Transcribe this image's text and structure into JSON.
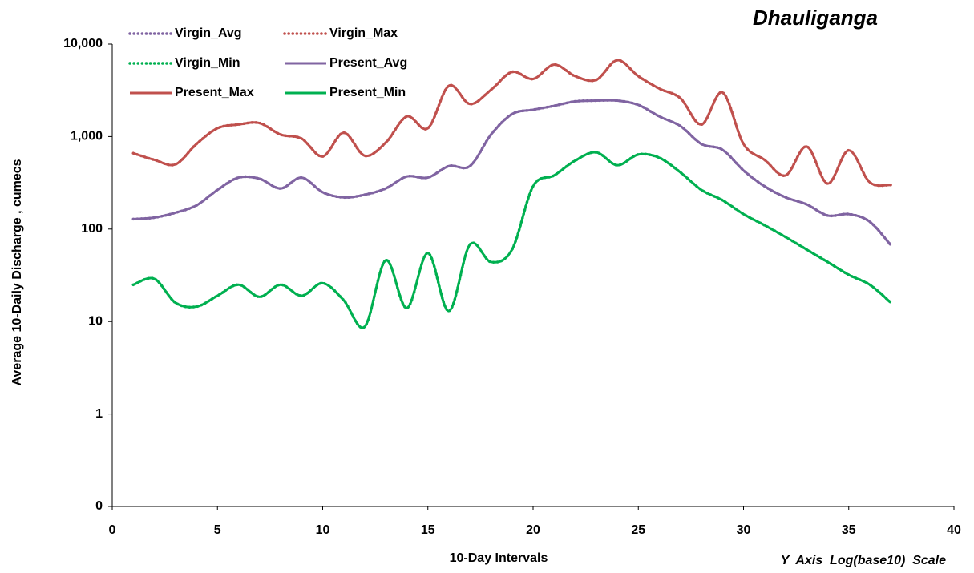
{
  "chart_data": {
    "type": "line",
    "title": "Dhauliganga",
    "x_label": "10-Day Intervals",
    "y_label": "Average 10-Daily Discharge , cumecs",
    "annotation": "Y  Axis  Log(base10)  Scale",
    "log_y": true,
    "grid": false,
    "legend": "top-left",
    "x": [
      1,
      2,
      3,
      4,
      5,
      6,
      7,
      8,
      9,
      10,
      11,
      12,
      13,
      14,
      15,
      16,
      17,
      18,
      19,
      20,
      21,
      22,
      23,
      24,
      25,
      26,
      27,
      28,
      29,
      30,
      31,
      32,
      33,
      34,
      35,
      36,
      37
    ],
    "xlim": [
      0,
      40
    ],
    "xticks": [
      0,
      5,
      10,
      15,
      20,
      25,
      30,
      35,
      40
    ],
    "ylim": [
      0.1,
      10000
    ],
    "yticks": [
      {
        "value": 0.1,
        "label": "0"
      },
      1,
      10,
      100,
      {
        "value": 1000,
        "label": "1,000"
      },
      {
        "value": 10000,
        "label": "10,000"
      }
    ],
    "series": [
      {
        "name": "Virgin_Avg",
        "color": "#8064a2",
        "style": "dotted",
        "values": [
          128,
          133,
          150,
          180,
          265,
          360,
          350,
          275,
          360,
          250,
          220,
          235,
          275,
          370,
          360,
          480,
          480,
          1050,
          1750,
          1950,
          2150,
          2400,
          2450,
          2450,
          2200,
          1650,
          1300,
          830,
          720,
          430,
          290,
          220,
          185,
          140,
          145,
          120,
          67
        ]
      },
      {
        "name": "Virgin_Max",
        "color": "#c0504d",
        "style": "dotted",
        "values": [
          660,
          560,
          500,
          830,
          1230,
          1350,
          1400,
          1050,
          950,
          610,
          1100,
          620,
          860,
          1650,
          1230,
          3550,
          2250,
          3200,
          5000,
          4200,
          6000,
          4500,
          4100,
          6700,
          4500,
          3300,
          2600,
          1350,
          3000,
          830,
          560,
          380,
          780,
          310,
          710,
          320,
          300
        ]
      },
      {
        "name": "Virgin_Min",
        "color": "#00b050",
        "style": "dotted",
        "values": [
          25,
          29,
          16,
          14.5,
          19,
          25,
          18.5,
          25,
          19,
          26,
          17,
          8.8,
          46,
          14,
          55,
          13,
          68,
          44,
          60,
          290,
          380,
          550,
          675,
          490,
          640,
          590,
          410,
          265,
          205,
          145,
          110,
          82,
          60,
          44,
          32,
          25,
          16
        ]
      },
      {
        "name": "Present_Avg",
        "color": "#8064a2",
        "style": "solid",
        "values": [
          128,
          133,
          150,
          180,
          265,
          360,
          350,
          275,
          360,
          250,
          220,
          235,
          275,
          370,
          360,
          480,
          480,
          1050,
          1750,
          1950,
          2150,
          2400,
          2450,
          2450,
          2200,
          1650,
          1300,
          830,
          720,
          430,
          290,
          220,
          185,
          140,
          145,
          120,
          67
        ]
      },
      {
        "name": "Present_Max",
        "color": "#c0504d",
        "style": "solid",
        "values": [
          660,
          560,
          500,
          830,
          1230,
          1350,
          1400,
          1050,
          950,
          610,
          1100,
          620,
          860,
          1650,
          1230,
          3550,
          2250,
          3200,
          5000,
          4200,
          6000,
          4500,
          4100,
          6700,
          4500,
          3300,
          2600,
          1350,
          3000,
          830,
          560,
          380,
          780,
          310,
          710,
          320,
          300
        ]
      },
      {
        "name": "Present_Min",
        "color": "#00b050",
        "style": "solid",
        "values": [
          25,
          29,
          16,
          14.5,
          19,
          25,
          18.5,
          25,
          19,
          26,
          17,
          8.8,
          46,
          14,
          55,
          13,
          68,
          44,
          60,
          290,
          380,
          550,
          675,
          490,
          640,
          590,
          410,
          265,
          205,
          145,
          110,
          82,
          60,
          44,
          32,
          25,
          16
        ]
      }
    ]
  }
}
